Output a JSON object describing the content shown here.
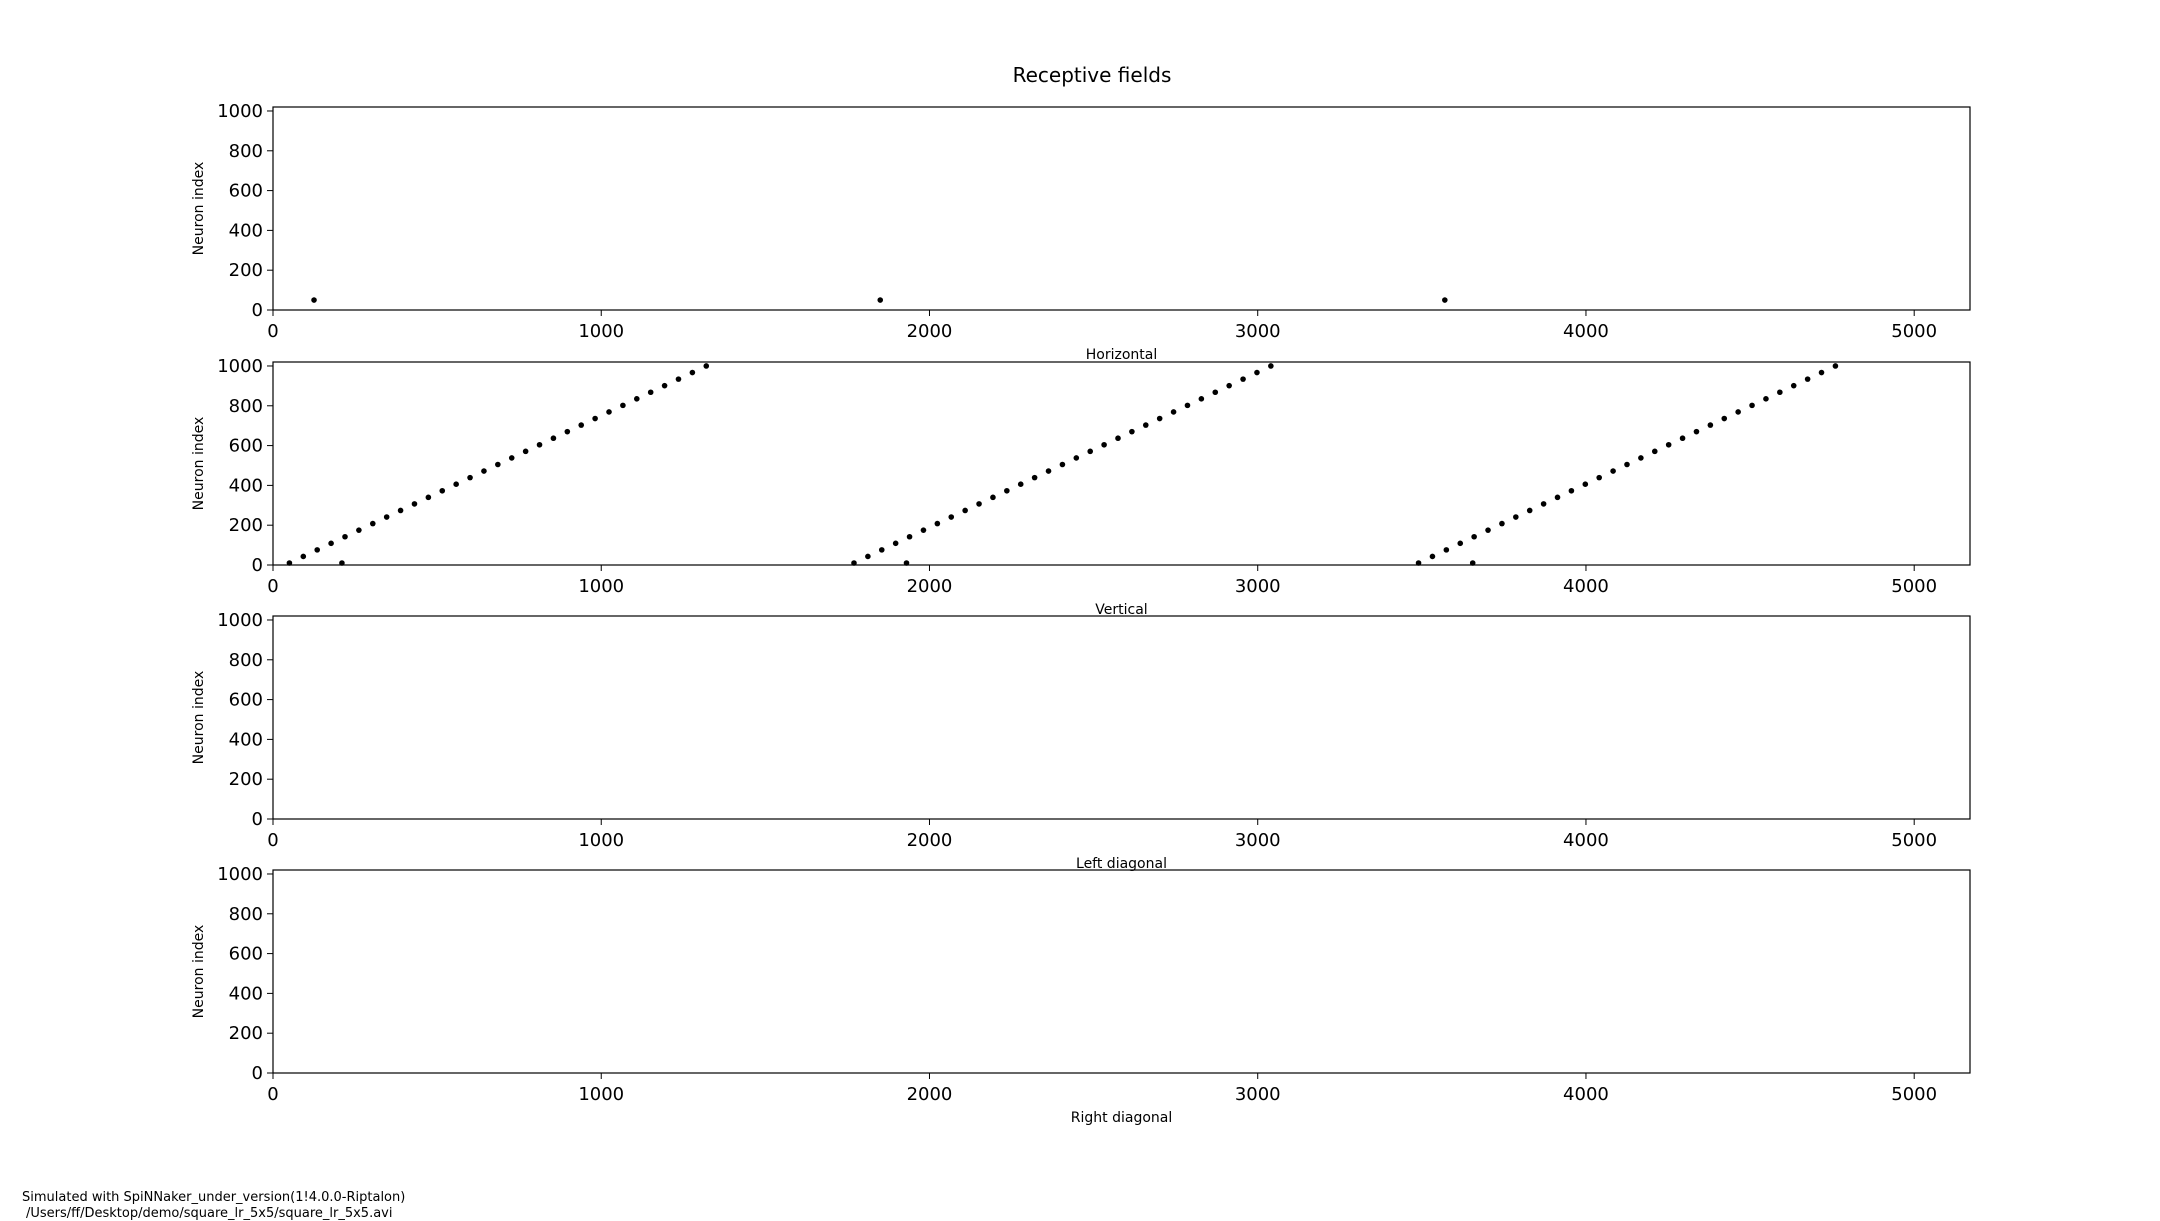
{
  "figure": {
    "title": "Receptive fields",
    "footer_line1": "Simulated with SpiNNaker_under_version(1!4.0.0-Riptalon)",
    "footer_line2": "/Users/ff/Desktop/demo/square_lr_5x5/square_lr_5x5.avi"
  },
  "chart_data": [
    {
      "type": "scatter",
      "title": "",
      "xlabel": "Horizontal",
      "ylabel": "Neuron index",
      "xlim": [
        0,
        5170
      ],
      "ylim": [
        0,
        1020
      ],
      "xticks": [
        "0",
        "1000",
        "2000",
        "3000",
        "4000",
        "5000"
      ],
      "yticks": [
        "0",
        "200",
        "400",
        "600",
        "800",
        "1000"
      ],
      "points": [
        [
          125,
          50
        ],
        [
          1850,
          50
        ],
        [
          3570,
          50
        ]
      ]
    },
    {
      "type": "scatter",
      "title": "",
      "xlabel": "Vertical",
      "ylabel": "Neuron index",
      "xlim": [
        0,
        5170
      ],
      "ylim": [
        0,
        1020
      ],
      "xticks": [
        "0",
        "1000",
        "2000",
        "3000",
        "4000",
        "5000"
      ],
      "yticks": [
        "0",
        "200",
        "400",
        "600",
        "800",
        "1000"
      ],
      "line_segments": [
        {
          "x_start": 50,
          "x_end": 1320,
          "y_start": 10,
          "y_end": 1000,
          "count": 31
        },
        {
          "x_start": 1770,
          "x_end": 3040,
          "y_start": 10,
          "y_end": 1000,
          "count": 31
        },
        {
          "x_start": 3490,
          "x_end": 4760,
          "y_start": 10,
          "y_end": 1000,
          "count": 31
        }
      ],
      "points": [
        [
          210,
          10
        ],
        [
          1930,
          10
        ],
        [
          3655,
          10
        ]
      ]
    },
    {
      "type": "scatter",
      "title": "",
      "xlabel": "Left diagonal",
      "ylabel": "Neuron index",
      "xlim": [
        0,
        5170
      ],
      "ylim": [
        0,
        1020
      ],
      "xticks": [
        "0",
        "1000",
        "2000",
        "3000",
        "4000",
        "5000"
      ],
      "yticks": [
        "0",
        "200",
        "400",
        "600",
        "800",
        "1000"
      ],
      "points": []
    },
    {
      "type": "scatter",
      "title": "",
      "xlabel": "Right diagonal",
      "ylabel": "Neuron index",
      "xlim": [
        0,
        5170
      ],
      "ylim": [
        0,
        1020
      ],
      "xticks": [
        "0",
        "1000",
        "2000",
        "3000",
        "4000",
        "5000"
      ],
      "yticks": [
        "0",
        "200",
        "400",
        "600",
        "800",
        "1000"
      ],
      "points": []
    }
  ]
}
